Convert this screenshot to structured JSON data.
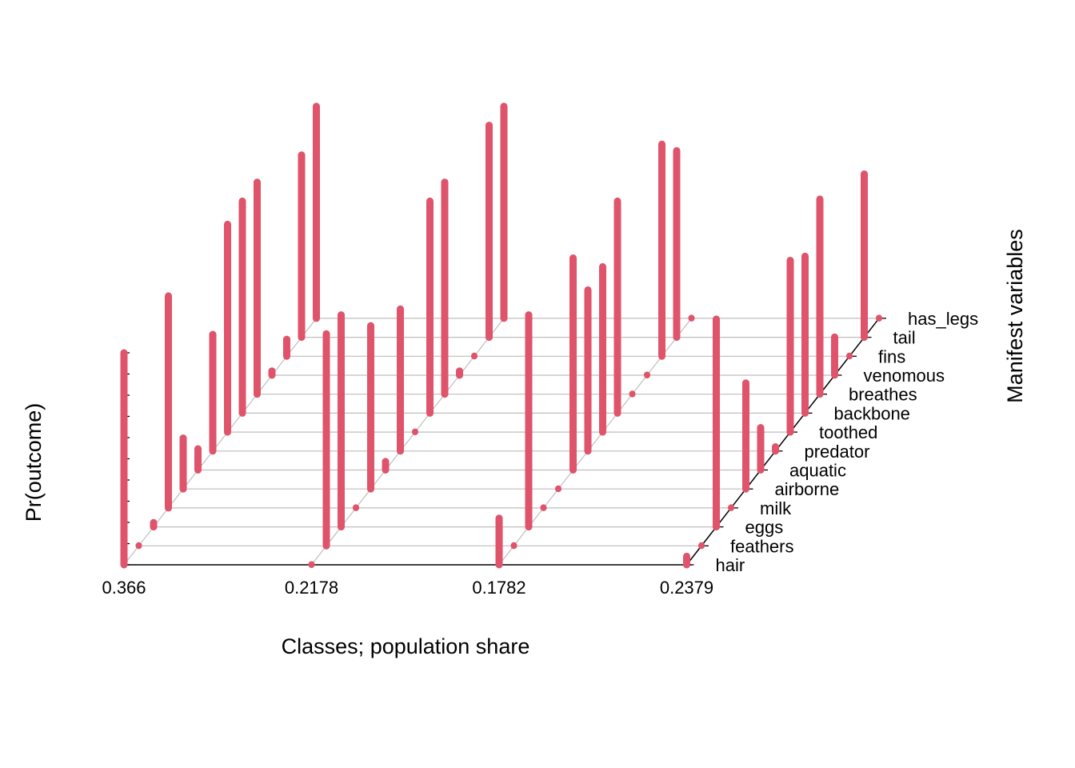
{
  "chart_data": {
    "type": "3d-bar",
    "xlabel": "Classes; population share",
    "ylabel": "Pr(outcome)",
    "zlabel": "Manifest variables",
    "classes": [
      "0.366",
      "0.2178",
      "0.1782",
      "0.2379"
    ],
    "variables": [
      "hair",
      "feathers",
      "eggs",
      "milk",
      "airborne",
      "aquatic",
      "predator",
      "toothed",
      "backbone",
      "breathes",
      "venomous",
      "fins",
      "tail",
      "has_legs"
    ],
    "ylim": [
      0,
      1
    ],
    "bar_color": "#DF536B",
    "grid_color": "#BEBEBE",
    "values": [
      [
        1.0,
        0.0,
        0.02,
        1.0,
        0.24,
        0.1,
        0.55,
        0.98,
        1.0,
        1.0,
        0.02,
        0.08,
        0.86,
        1.0
      ],
      [
        0.0,
        1.0,
        1.0,
        0.0,
        0.77,
        0.04,
        0.67,
        0.0,
        1.0,
        1.0,
        0.02,
        0.0,
        1.0,
        1.0
      ],
      [
        0.22,
        0.0,
        1.0,
        0.0,
        0.0,
        1.0,
        0.76,
        0.78,
        1.0,
        0.0,
        0.0,
        1.0,
        0.88,
        0.0
      ],
      [
        0.04,
        0.0,
        0.98,
        0.0,
        0.5,
        0.2,
        0.02,
        0.81,
        0.74,
        0.92,
        0.18,
        0.0,
        0.77,
        0.0
      ]
    ]
  }
}
